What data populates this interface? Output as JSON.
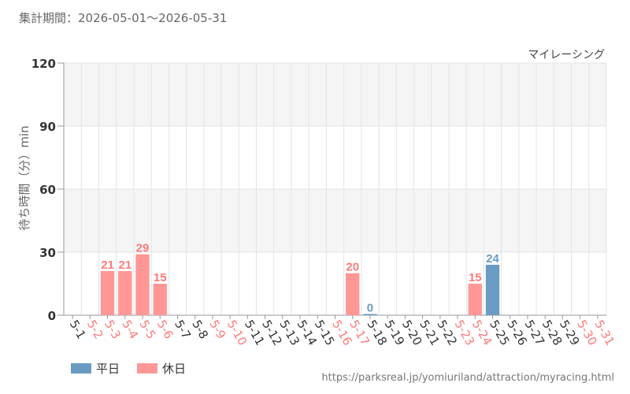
{
  "header": {
    "period_label": "集計期間：2026-05-01～2026-05-31"
  },
  "colors": {
    "weekday": "#6a9bc3",
    "holiday": "#ff9797",
    "weekday_text": "#333333",
    "holiday_text": "#ff7a7a",
    "grid": "#e4e4e4",
    "band": "#f5f5f5"
  },
  "legend": {
    "weekday_label": "平日",
    "holiday_label": "休日"
  },
  "source": {
    "url": "https://parksreal.jp/yomiuriland/attraction/myracing.html"
  },
  "chart_data": {
    "type": "bar",
    "title": "マイレーシング",
    "ylabel": "待ち時間（分）min",
    "xlabel": "",
    "ylim": [
      0,
      120
    ],
    "yticks": [
      0,
      30,
      60,
      90,
      120
    ],
    "grid": true,
    "legend_position": "bottom-left",
    "categories": [
      "5-1",
      "5-2",
      "5-3",
      "5-4",
      "5-5",
      "5-6",
      "5-7",
      "5-8",
      "5-9",
      "5-10",
      "5-11",
      "5-12",
      "5-13",
      "5-14",
      "5-15",
      "5-16",
      "5-17",
      "5-18",
      "5-19",
      "5-20",
      "5-21",
      "5-22",
      "5-23",
      "5-24",
      "5-25",
      "5-26",
      "5-27",
      "5-28",
      "5-29",
      "5-30",
      "5-31"
    ],
    "day_type": [
      "weekday",
      "holiday",
      "holiday",
      "holiday",
      "holiday",
      "holiday",
      "weekday",
      "weekday",
      "holiday",
      "holiday",
      "weekday",
      "weekday",
      "weekday",
      "weekday",
      "weekday",
      "holiday",
      "holiday",
      "weekday",
      "weekday",
      "weekday",
      "weekday",
      "weekday",
      "holiday",
      "holiday",
      "weekday",
      "weekday",
      "weekday",
      "weekday",
      "weekday",
      "holiday",
      "holiday"
    ],
    "values": [
      null,
      null,
      21,
      21,
      29,
      15,
      null,
      null,
      null,
      null,
      null,
      null,
      null,
      null,
      null,
      null,
      20,
      0,
      null,
      null,
      null,
      null,
      null,
      15,
      24,
      null,
      null,
      null,
      null,
      null,
      null
    ]
  }
}
